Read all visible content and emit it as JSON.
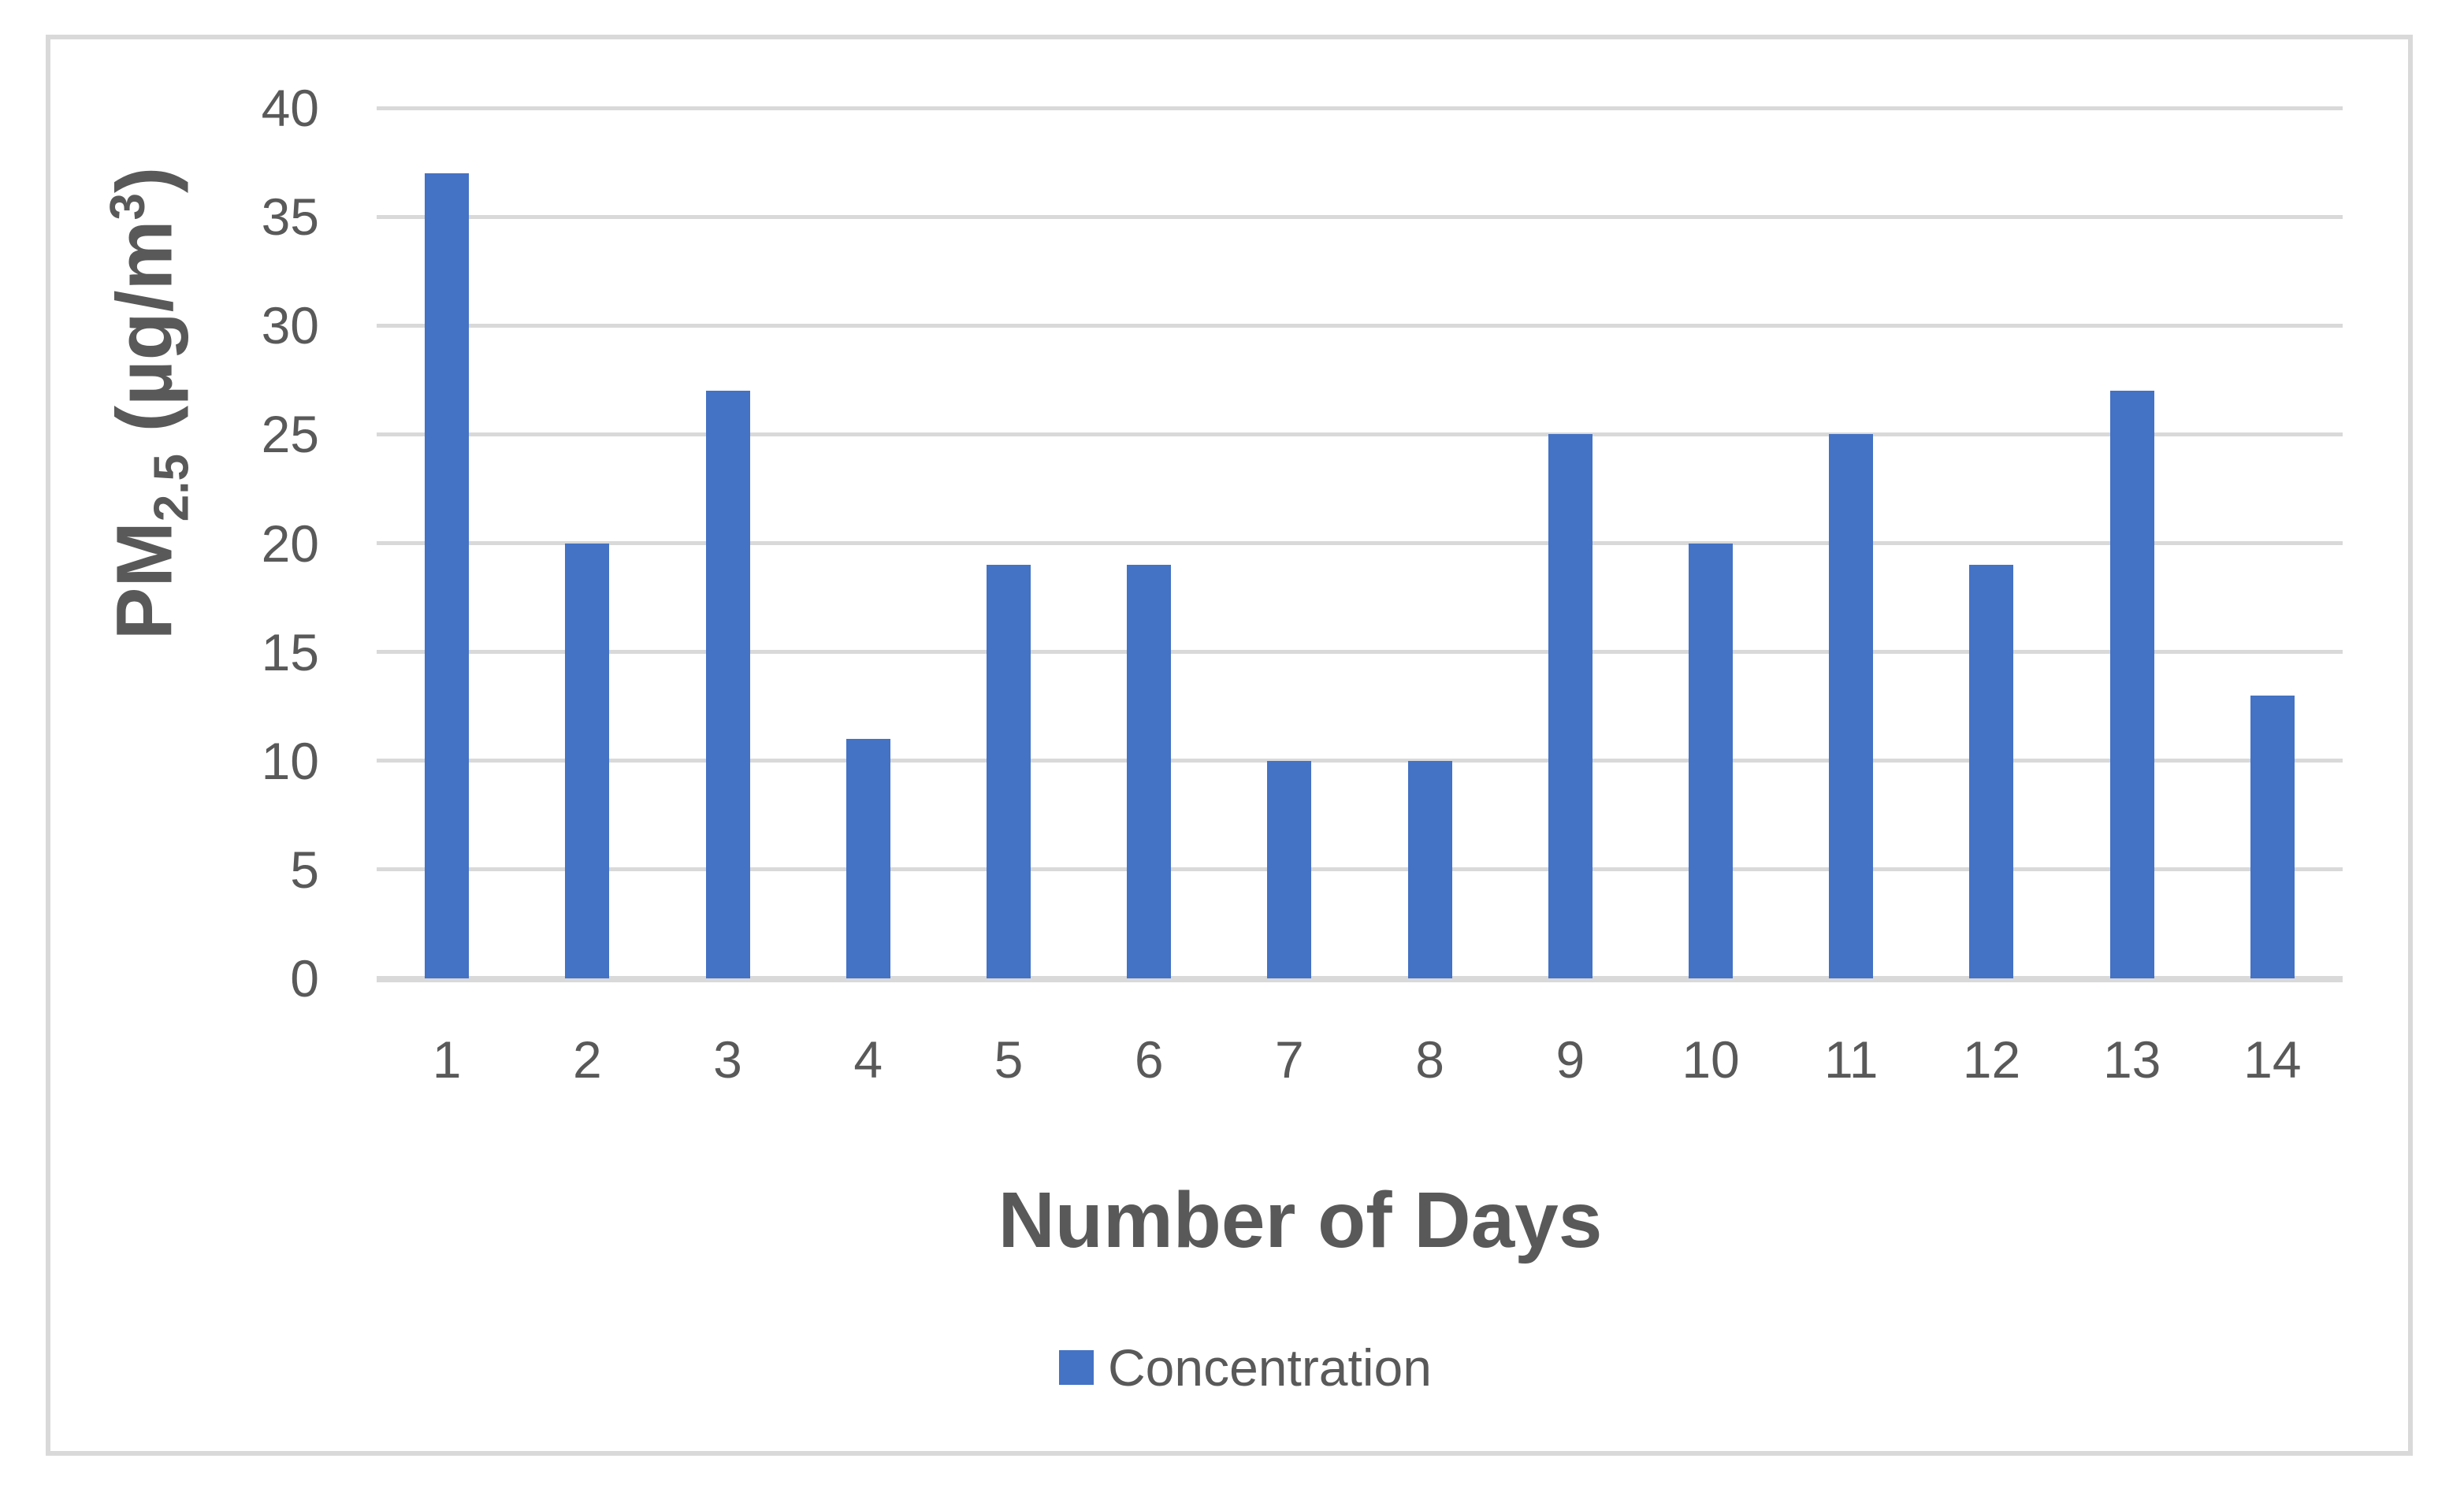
{
  "chart_data": {
    "type": "bar",
    "title": "",
    "categories": [
      "1",
      "2",
      "3",
      "4",
      "5",
      "6",
      "7",
      "8",
      "9",
      "10",
      "11",
      "12",
      "13",
      "14"
    ],
    "series": [
      {
        "name": "Concentration",
        "color": "#4472C4",
        "values": [
          37,
          20,
          27,
          11,
          19,
          19,
          10,
          10,
          25,
          20,
          25,
          19,
          27,
          13
        ]
      }
    ],
    "xlabel": "Number of Days",
    "ylabel": "PM2.5 (µg/m³)",
    "ylabel_rich": {
      "base": "PM",
      "sub": "2.5",
      "mid": " (µg/m",
      "sup": "3",
      "end": ")"
    },
    "ylim": [
      0,
      40
    ],
    "ytick_interval": 5,
    "yticks": [
      0,
      5,
      10,
      15,
      20,
      25,
      30,
      35,
      40
    ],
    "grid": true,
    "legend_position": "bottom",
    "colors": {
      "bar": "#4472C4",
      "gridline": "#D9D9D9",
      "frame_border": "#D9D9D9",
      "text": "#595959",
      "background": "#FFFFFF"
    }
  }
}
